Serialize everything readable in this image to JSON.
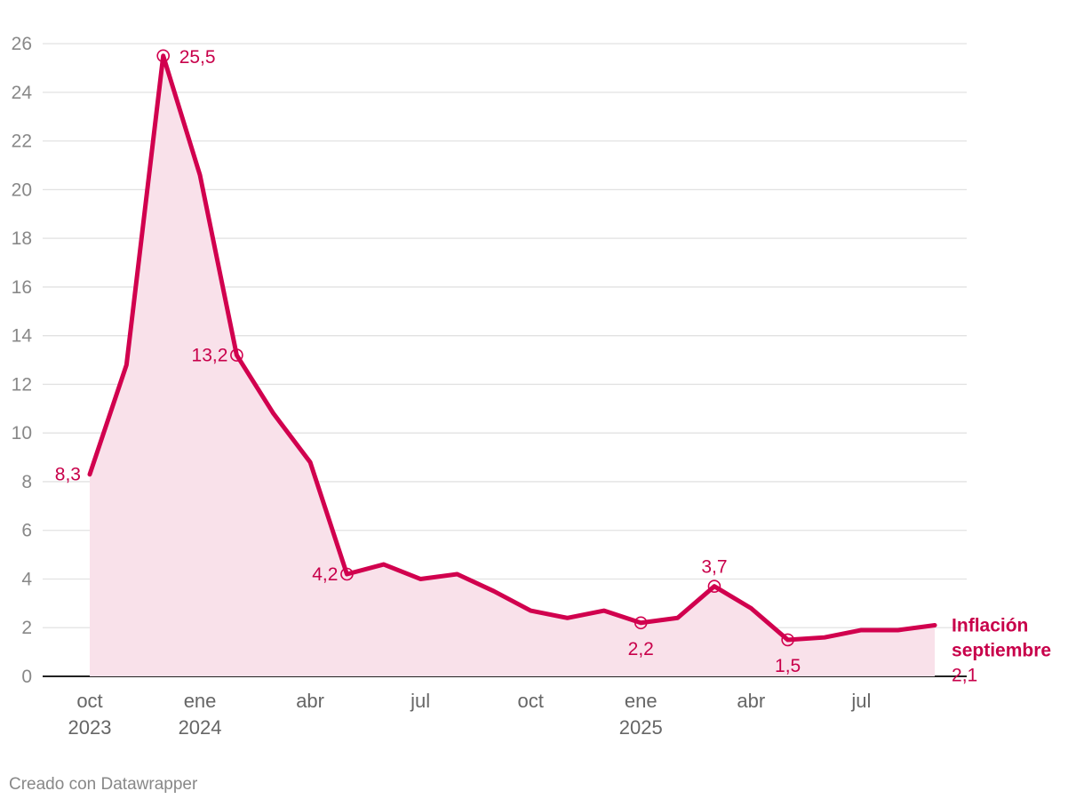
{
  "chart_data": {
    "type": "area",
    "title": "",
    "xlabel": "",
    "ylabel": "",
    "ylim": [
      0,
      26
    ],
    "y_ticks": [
      "0",
      "2",
      "4",
      "6",
      "8",
      "10",
      "12",
      "14",
      "16",
      "18",
      "20",
      "22",
      "24",
      "26"
    ],
    "x_ticks": [
      {
        "index": 0,
        "label": "oct",
        "year": "2023"
      },
      {
        "index": 3,
        "label": "ene",
        "year": "2024"
      },
      {
        "index": 6,
        "label": "abr",
        "year": ""
      },
      {
        "index": 9,
        "label": "jul",
        "year": ""
      },
      {
        "index": 12,
        "label": "oct",
        "year": ""
      },
      {
        "index": 15,
        "label": "ene",
        "year": "2025"
      },
      {
        "index": 18,
        "label": "abr",
        "year": ""
      },
      {
        "index": 21,
        "label": "jul",
        "year": ""
      }
    ],
    "series": [
      {
        "name": "Inflación",
        "months": [
          "oct 2023",
          "nov 2023",
          "dic 2023",
          "ene 2024",
          "feb 2024",
          "mar 2024",
          "abr 2024",
          "may 2024",
          "jun 2024",
          "jul 2024",
          "ago 2024",
          "sep 2024",
          "oct 2024",
          "nov 2024",
          "dic 2024",
          "ene 2025",
          "feb 2025",
          "mar 2025",
          "abr 2025",
          "may 2025",
          "jun 2025",
          "jul 2025",
          "ago 2025",
          "sep 2025"
        ],
        "values": [
          8.3,
          12.8,
          25.5,
          20.6,
          13.2,
          10.8,
          8.8,
          4.2,
          4.6,
          4.0,
          4.2,
          3.5,
          2.7,
          2.4,
          2.7,
          2.2,
          2.4,
          3.7,
          2.8,
          1.5,
          1.6,
          1.9,
          1.9,
          2.1
        ]
      }
    ],
    "annotations": [
      {
        "index": 0,
        "label": "8,3",
        "marker": false,
        "pos": "left"
      },
      {
        "index": 2,
        "label": "25,5",
        "marker": true,
        "pos": "right"
      },
      {
        "index": 4,
        "label": "13,2",
        "marker": true,
        "pos": "left"
      },
      {
        "index": 7,
        "label": "4,2",
        "marker": true,
        "pos": "left"
      },
      {
        "index": 15,
        "label": "2,2",
        "marker": true,
        "pos": "below"
      },
      {
        "index": 17,
        "label": "3,7",
        "marker": true,
        "pos": "above"
      },
      {
        "index": 19,
        "label": "1,5",
        "marker": true,
        "pos": "below"
      }
    ],
    "end_label": {
      "line1": "Inflación",
      "line2": "septiembre",
      "value": "2,1"
    },
    "grid": true,
    "colors": {
      "line": "#d1004e",
      "area": "#f9e1ea",
      "grid": "#e2e2e2"
    }
  },
  "footer": {
    "credit": "Creado con Datawrapper"
  }
}
